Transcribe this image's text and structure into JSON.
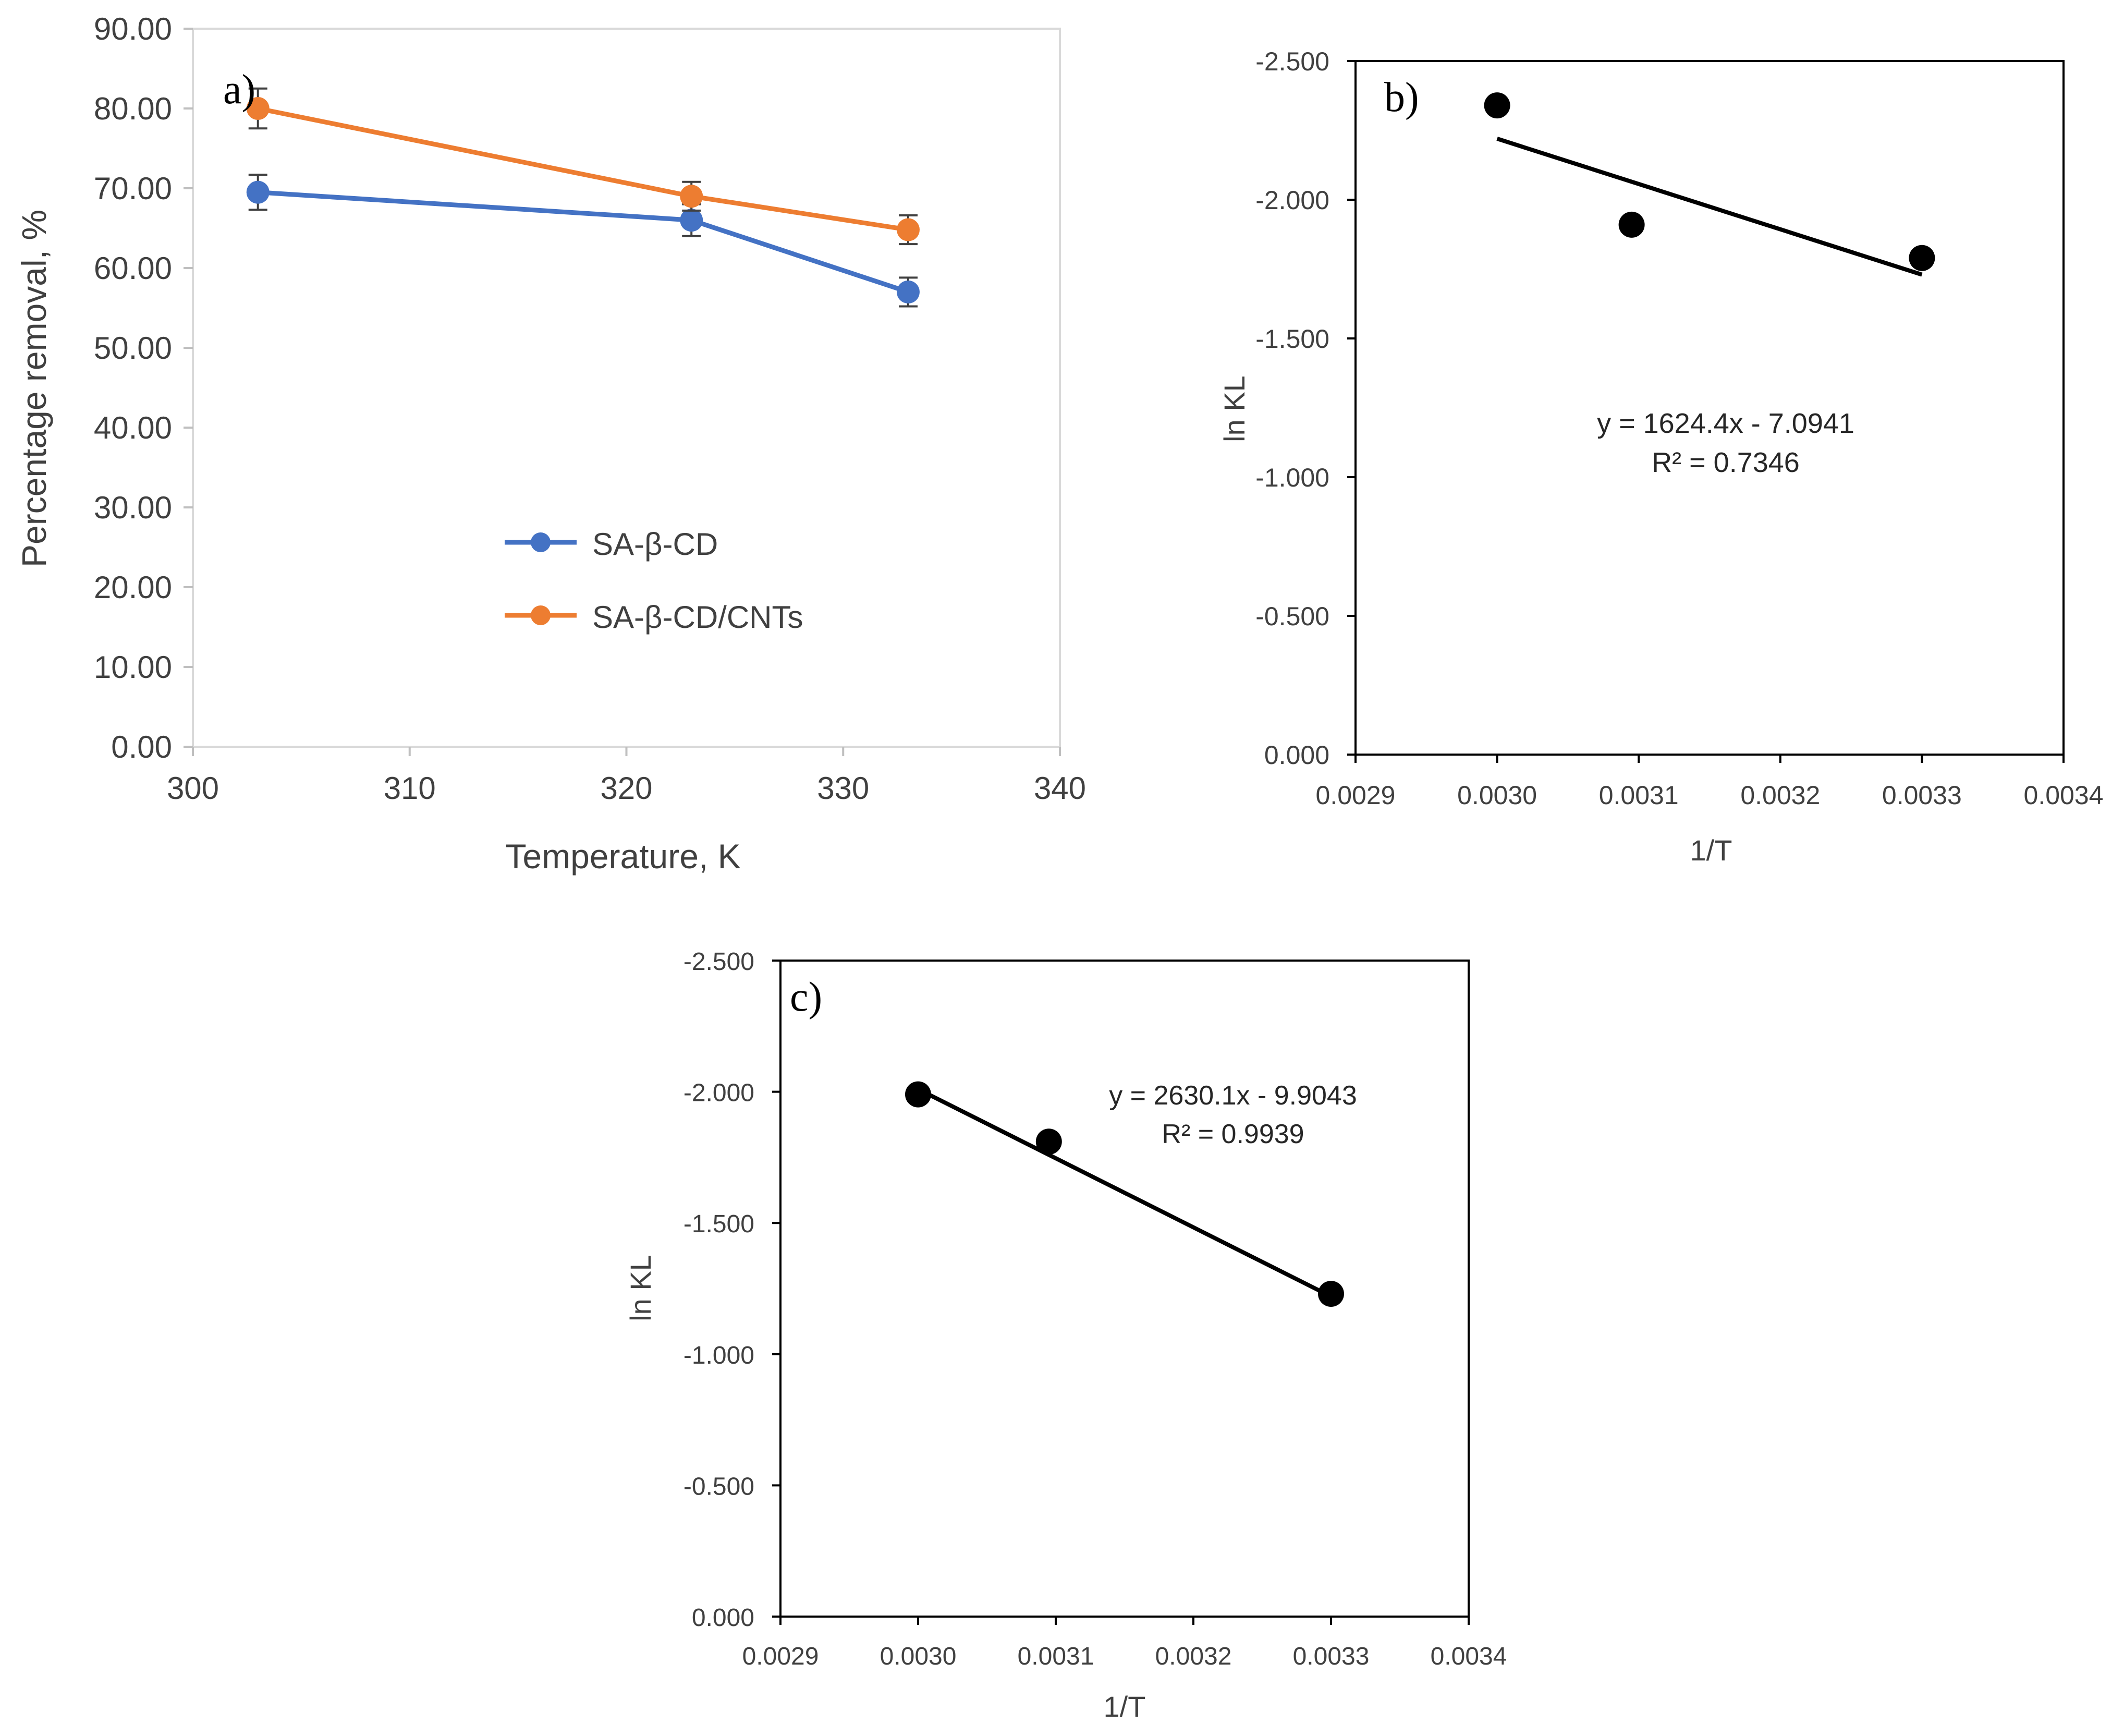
{
  "chart_data": [
    {
      "panel": "a)",
      "type": "line",
      "xlabel": "Temperature, K",
      "ylabel": "Percentage removal, %",
      "xlim": [
        300,
        340
      ],
      "ylim": [
        0,
        90
      ],
      "xticks": [
        "300",
        "310",
        "320",
        "330",
        "340"
      ],
      "yticks": [
        "0.00",
        "10.00",
        "20.00",
        "30.00",
        "40.00",
        "50.00",
        "60.00",
        "70.00",
        "80.00",
        "90.00"
      ],
      "legend_position": "lower-middle",
      "series": [
        {
          "name": "SA-β-CD",
          "color": "#4472C4",
          "x": [
            303,
            323,
            333
          ],
          "y": [
            69.5,
            66.0,
            57.0
          ],
          "error": [
            2.2,
            2.0,
            1.8
          ]
        },
        {
          "name": "SA-β-CD/CNTs",
          "color": "#ED7D31",
          "x": [
            303,
            323,
            333
          ],
          "y": [
            80.0,
            69.0,
            64.8
          ],
          "error": [
            2.5,
            1.8,
            1.8
          ]
        }
      ]
    },
    {
      "panel": "b)",
      "type": "scatter",
      "xlabel": "1/T",
      "ylabel": "ln KL",
      "xlim": [
        0.0029,
        0.0034
      ],
      "ylim": [
        0,
        -2.5
      ],
      "xticks": [
        "0.0029",
        "0.0030",
        "0.0031",
        "0.0032",
        "0.0033",
        "0.0034"
      ],
      "yticks": [
        "0.000",
        "-0.500",
        "-1.000",
        "-1.500",
        "-2.000",
        "-2.500"
      ],
      "points": {
        "x": [
          0.003,
          0.003095,
          0.0033
        ],
        "y": [
          -2.34,
          -1.91,
          -1.79
        ]
      },
      "trendline": {
        "x": [
          0.003,
          0.0033
        ],
        "y": [
          -2.22,
          -1.73
        ]
      },
      "equation": "y = 1624.4x - 7.0941",
      "r_squared": "R² = 0.7346"
    },
    {
      "panel": "c)",
      "type": "scatter",
      "xlabel": "1/T",
      "ylabel": "ln KL",
      "xlim": [
        0.0029,
        0.0034
      ],
      "ylim": [
        0,
        -2.5
      ],
      "xticks": [
        "0.0029",
        "0.0030",
        "0.0031",
        "0.0032",
        "0.0033",
        "0.0034"
      ],
      "yticks": [
        "0.000",
        "-0.500",
        "-1.000",
        "-1.500",
        "-2.000",
        "-2.500"
      ],
      "points": {
        "x": [
          0.003,
          0.003095,
          0.0033
        ],
        "y": [
          -1.99,
          -1.81,
          -1.23
        ]
      },
      "trendline": {
        "x": [
          0.003,
          0.0033
        ],
        "y": [
          -2.01,
          -1.22
        ]
      },
      "equation": "y = 2630.1x - 9.9043",
      "r_squared": "R² = 0.9939"
    }
  ]
}
